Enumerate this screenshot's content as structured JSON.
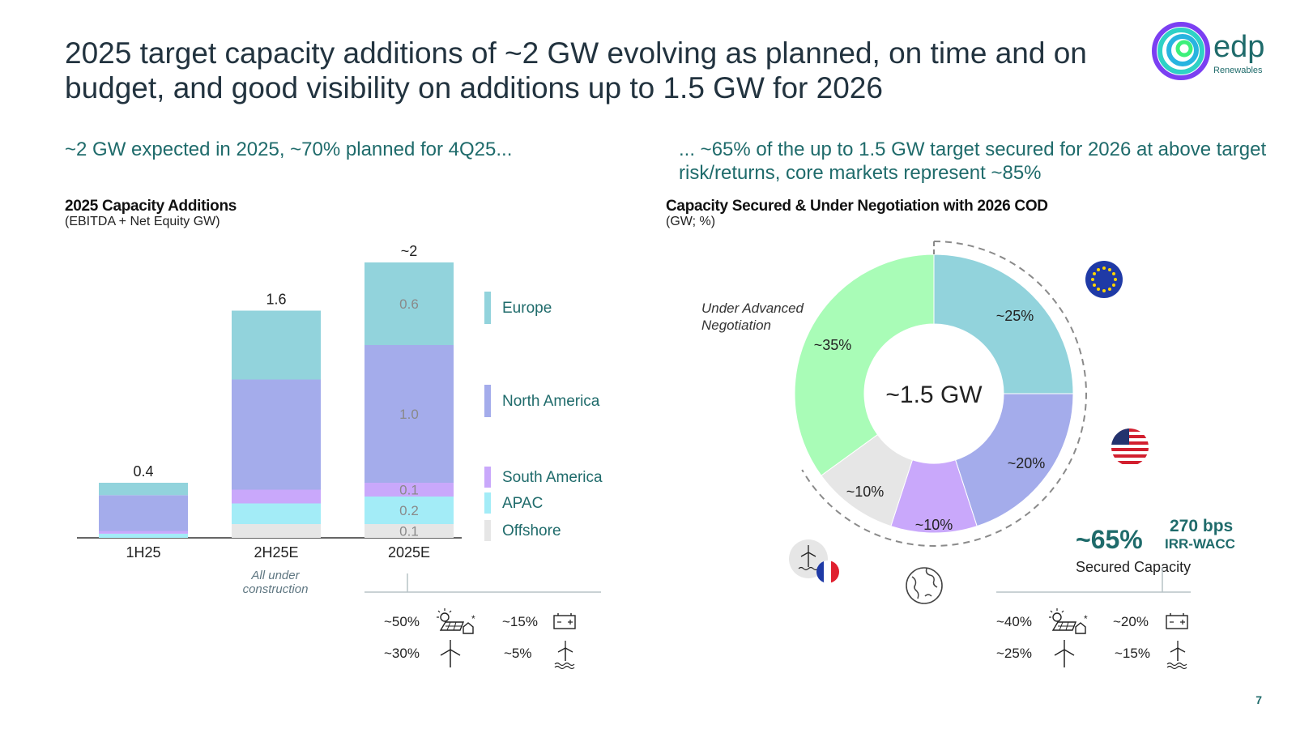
{
  "title": "2025 target capacity additions of ~2 GW evolving as planned, on time and on budget, and good visibility on additions up to 1.5 GW for 2026",
  "logo": {
    "name": "edp",
    "sub": "Renewables"
  },
  "left": {
    "subtitle": "~2 GW expected in 2025, ~70% planned for 4Q25...",
    "chart_title": "2025 Capacity Additions",
    "chart_unit": "(EBITDA + Net Equity GW)",
    "note": "All under construction",
    "tech_mix": [
      {
        "pct": "~50%",
        "icon": "solar-icon"
      },
      {
        "pct": "~15%",
        "icon": "battery-icon"
      },
      {
        "pct": "~30%",
        "icon": "wind-icon"
      },
      {
        "pct": "~5%",
        "icon": "offshore-wind-icon"
      }
    ]
  },
  "right": {
    "subtitle": "... ~65% of the up to 1.5 GW target secured for 2026 at above target risk/returns, core markets represent  ~85%",
    "chart_title": "Capacity Secured & Under Negotiation with 2026 COD",
    "chart_unit": "(GW; %)",
    "center_label": "~1.5 GW",
    "advanced_negotiation": "Under Advanced Negotiation",
    "secured_pct": "~65%",
    "secured_bps": "270 bps",
    "secured_irr": "IRR-WACC",
    "secured_label": "Secured Capacity",
    "tech_mix": [
      {
        "pct": "~40%",
        "icon": "solar-icon"
      },
      {
        "pct": "~20%",
        "icon": "battery-icon"
      },
      {
        "pct": "~25%",
        "icon": "wind-icon"
      },
      {
        "pct": "~15%",
        "icon": "offshore-wind-icon"
      }
    ]
  },
  "page_number": "7",
  "colors": {
    "Europe": "#92d3dc",
    "North America": "#a4aceb",
    "South America": "#c9a8fb",
    "APAC": "#a3ecf7",
    "Offshore": "#e6e6e6",
    "Advanced": "#a9fcb7"
  },
  "chart_data": [
    {
      "type": "bar",
      "stacked": true,
      "title": "2025 Capacity Additions",
      "ylabel": "(EBITDA + Net Equity GW)",
      "categories": [
        "1H25",
        "2H25E",
        "2025E"
      ],
      "totals": [
        "0.4",
        "1.6",
        "~2"
      ],
      "series": [
        {
          "name": "Offshore",
          "values": [
            0.0,
            0.1,
            0.1
          ],
          "labels": [
            "",
            "",
            "0.1"
          ]
        },
        {
          "name": "APAC",
          "values": [
            0.03,
            0.15,
            0.2
          ],
          "labels": [
            "",
            "",
            "0.2"
          ]
        },
        {
          "name": "South America",
          "values": [
            0.02,
            0.1,
            0.1
          ],
          "labels": [
            "",
            "",
            "0.1"
          ]
        },
        {
          "name": "North America",
          "values": [
            0.26,
            0.8,
            1.0
          ],
          "labels": [
            "",
            "",
            "1.0"
          ]
        },
        {
          "name": "Europe",
          "values": [
            0.09,
            0.5,
            0.6
          ],
          "labels": [
            "",
            "",
            "0.6"
          ]
        }
      ],
      "legend": [
        "Europe",
        "North America",
        "South America",
        "APAC",
        "Offshore"
      ],
      "ylim": [
        0,
        2.1
      ]
    },
    {
      "type": "pie",
      "title": "Capacity Secured & Under Negotiation with 2026 COD",
      "center": "~1.5 GW",
      "slices": [
        {
          "name": "Europe",
          "value": 25,
          "label": "~25%"
        },
        {
          "name": "North America",
          "value": 20,
          "label": "~20%"
        },
        {
          "name": "South America",
          "value": 10,
          "label": "~10%"
        },
        {
          "name": "Offshore",
          "value": 10,
          "label": "~10%"
        },
        {
          "name": "Advanced",
          "value": 35,
          "label": "~35%"
        }
      ]
    }
  ]
}
